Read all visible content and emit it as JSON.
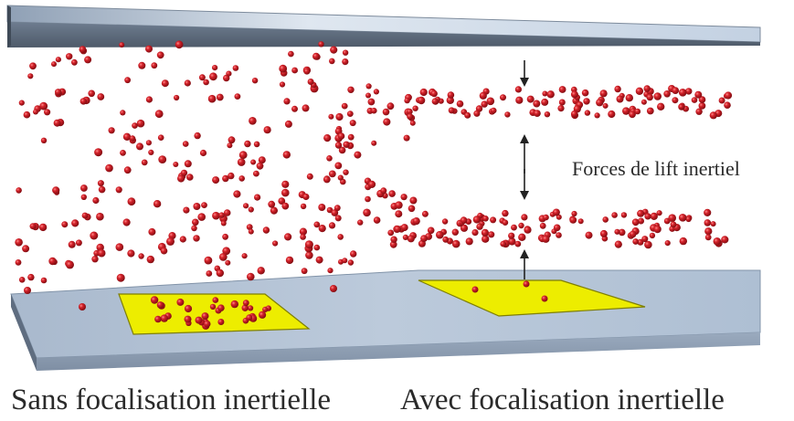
{
  "labels": {
    "lift_force": "Forces de lift inertiel",
    "without_focusing": "Sans focalisation inertielle",
    "with_focusing": "Avec focalisation inertielle"
  },
  "colors": {
    "particle": "#c0141b",
    "plate": "#b9c9dc",
    "electrode": "#f0f000",
    "arrow": "#222222"
  }
}
